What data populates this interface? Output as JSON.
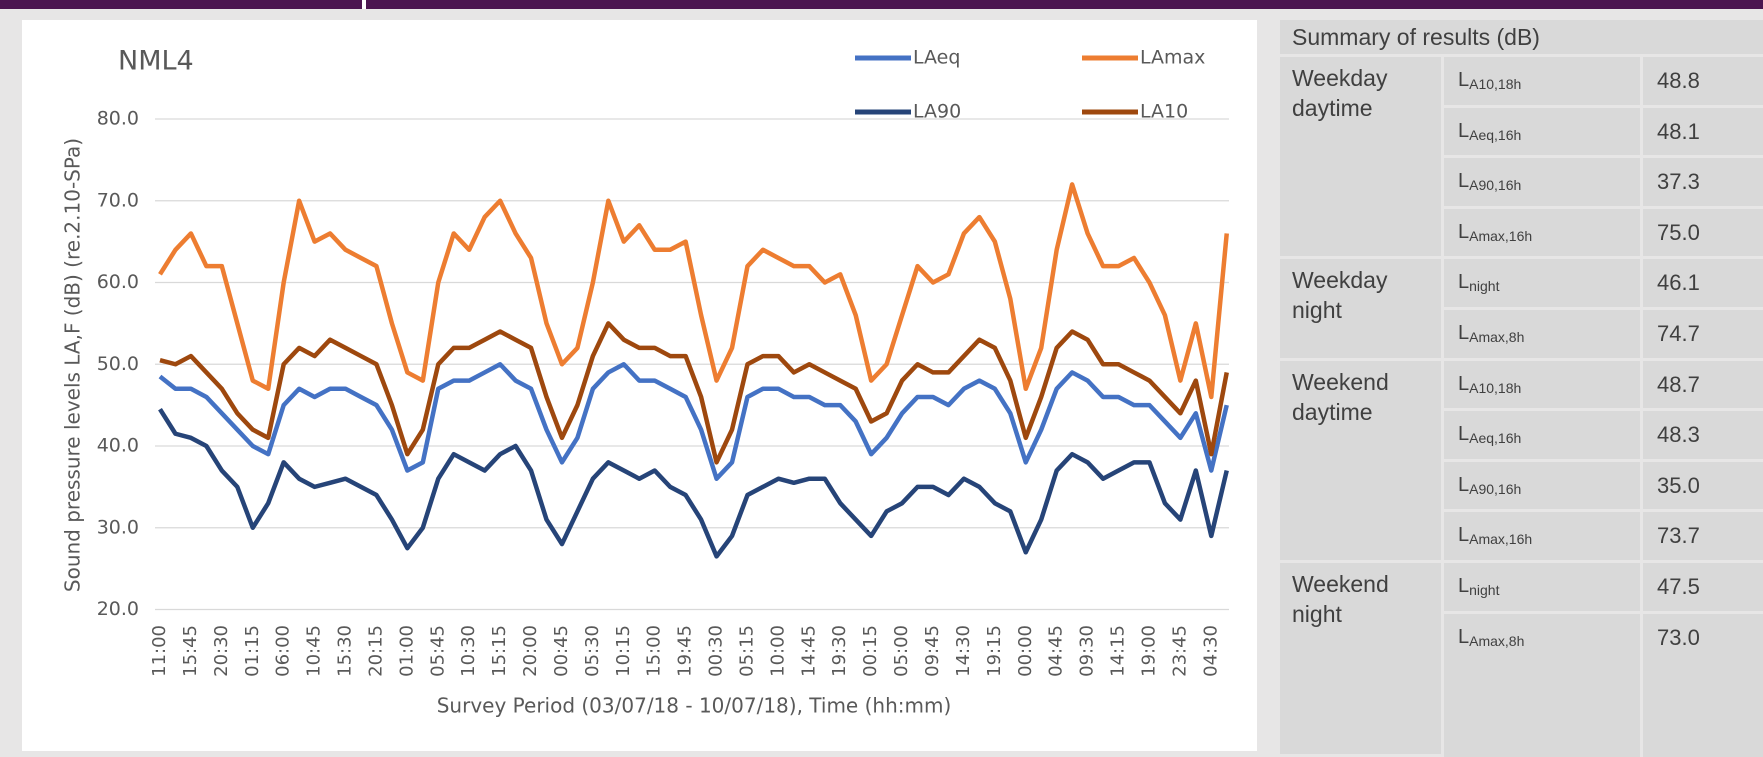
{
  "chart_data": {
    "type": "line",
    "title": "NML4",
    "x_label": "Survey Period (03/07/18 -  10/07/18), Time (hh:mm)",
    "y_label": "Sound pressure levels  LA,F (dB) (re.2.10-SPa)",
    "categories": [
      "11:00",
      null,
      "15:45",
      null,
      "20:30",
      null,
      "01:15",
      null,
      "06:00",
      null,
      "10:45",
      null,
      "15:30",
      null,
      "20:15",
      null,
      "01:00",
      null,
      "05:45",
      null,
      "10:30",
      null,
      "15:15",
      null,
      "20:00",
      null,
      "00:45",
      null,
      "05:30",
      null,
      "10:15",
      null,
      "15:00",
      null,
      "19:45",
      null,
      "00:30",
      null,
      "05:15",
      null,
      "10:00",
      null,
      "14:45",
      null,
      "19:30",
      null,
      "00:15",
      null,
      "05:00",
      null,
      "09:45",
      null,
      "14:30",
      null,
      "19:15",
      null,
      "00:00",
      null,
      "04:45",
      null,
      "09:30",
      null,
      "14:15",
      null,
      "19:00",
      null,
      "23:45",
      null,
      "04:30",
      null
    ],
    "series": [
      {
        "name": "LAeq",
        "color": "#4472c4",
        "values": [
          48.5,
          47,
          47,
          46,
          44,
          42,
          40,
          39,
          45,
          47,
          46,
          47,
          47,
          46,
          45,
          42,
          37,
          38,
          47,
          48,
          48,
          49,
          50,
          48,
          47,
          42,
          38,
          41,
          47,
          49,
          50,
          48,
          48,
          47,
          46,
          42,
          36,
          38,
          46,
          47,
          47,
          46,
          46,
          45,
          45,
          43,
          39,
          41,
          44,
          46,
          46,
          45,
          47,
          48,
          47,
          44,
          38,
          42,
          47,
          49,
          48,
          46,
          46,
          45,
          45,
          43,
          41,
          44,
          37,
          45
        ]
      },
      {
        "name": "LAmax",
        "color": "#ed7d31",
        "values": [
          61,
          64,
          66,
          62,
          62,
          55,
          48,
          47,
          60,
          70,
          65,
          66,
          64,
          63,
          62,
          55,
          49,
          48,
          60,
          66,
          64,
          68,
          70,
          66,
          63,
          55,
          50,
          52,
          60,
          70,
          65,
          67,
          64,
          64,
          65,
          56,
          48,
          52,
          62,
          64,
          63,
          62,
          62,
          60,
          61,
          56,
          48,
          50,
          56,
          62,
          60,
          61,
          66,
          68,
          65,
          58,
          47,
          52,
          64,
          72,
          66,
          62,
          62,
          63,
          60,
          56,
          48,
          55,
          46,
          66
        ]
      },
      {
        "name": "LA90",
        "color": "#264478",
        "values": [
          44.5,
          41.5,
          41,
          40,
          37,
          35,
          30,
          33,
          38,
          36,
          35,
          35.5,
          36,
          35,
          34,
          31,
          27.5,
          30,
          36,
          39,
          38,
          37,
          39,
          40,
          37,
          31,
          28,
          32,
          36,
          38,
          37,
          36,
          37,
          35,
          34,
          31,
          26.5,
          29,
          34,
          35,
          36,
          35.5,
          36,
          36,
          33,
          31,
          29,
          32,
          33,
          35,
          35,
          34,
          36,
          35,
          33,
          32,
          27,
          31,
          37,
          39,
          38,
          36,
          37,
          38,
          38,
          33,
          31,
          37,
          29,
          37
        ]
      },
      {
        "name": "LA10",
        "color": "#9e480e",
        "values": [
          50.5,
          50,
          51,
          49,
          47,
          44,
          42,
          41,
          50,
          52,
          51,
          53,
          52,
          51,
          50,
          45,
          39,
          42,
          50,
          52,
          52,
          53,
          54,
          53,
          52,
          46,
          41,
          45,
          51,
          55,
          53,
          52,
          52,
          51,
          51,
          46,
          38,
          42,
          50,
          51,
          51,
          49,
          50,
          49,
          48,
          47,
          43,
          44,
          48,
          50,
          49,
          49,
          51,
          53,
          52,
          48,
          41,
          46,
          52,
          54,
          53,
          50,
          50,
          49,
          48,
          46,
          44,
          48,
          39,
          49
        ]
      }
    ],
    "ylim": [
      20,
      80
    ],
    "yticks": [
      {
        "value": 20,
        "label": "20.0"
      },
      {
        "value": 30,
        "label": "30.0"
      },
      {
        "value": 40,
        "label": "40.0"
      },
      {
        "value": 50,
        "label": "50.0"
      },
      {
        "value": 60,
        "label": "60.0"
      },
      {
        "value": 70,
        "label": "70.0"
      },
      {
        "value": 80,
        "label": "80.0"
      }
    ],
    "grid": true,
    "legend": "top-right"
  },
  "table": {
    "title": "Summary of results (dB)",
    "groups": [
      {
        "label": "Weekday daytime",
        "rows": [
          {
            "symbol": "L",
            "subscript": "A10,18h",
            "value": "48.8"
          },
          {
            "symbol": "L",
            "subscript": "Aeq,16h",
            "value": "48.1"
          },
          {
            "symbol": "L",
            "subscript": "A90,16h",
            "value": "37.3"
          },
          {
            "symbol": "L",
            "subscript": "Amax,16h",
            "value": "75.0"
          }
        ]
      },
      {
        "label": "Weekday night",
        "rows": [
          {
            "symbol": "L",
            "subscript": "night",
            "value": "46.1"
          },
          {
            "symbol": "L",
            "subscript": "Amax,8h",
            "value": "74.7"
          }
        ]
      },
      {
        "label": "Weekend daytime",
        "rows": [
          {
            "symbol": "L",
            "subscript": "A10,18h",
            "value": "48.7"
          },
          {
            "symbol": "L",
            "subscript": "Aeq,16h",
            "value": "48.3"
          },
          {
            "symbol": "L",
            "subscript": "A90,16h",
            "value": "35.0"
          },
          {
            "symbol": "L",
            "subscript": "Amax,16h",
            "value": "73.7"
          }
        ]
      },
      {
        "label": "Weekend night",
        "rows": [
          {
            "symbol": "L",
            "subscript": "night",
            "value": "47.5"
          },
          {
            "symbol": "L",
            "subscript": "Amax,8h",
            "value": "73.0"
          }
        ]
      }
    ]
  }
}
